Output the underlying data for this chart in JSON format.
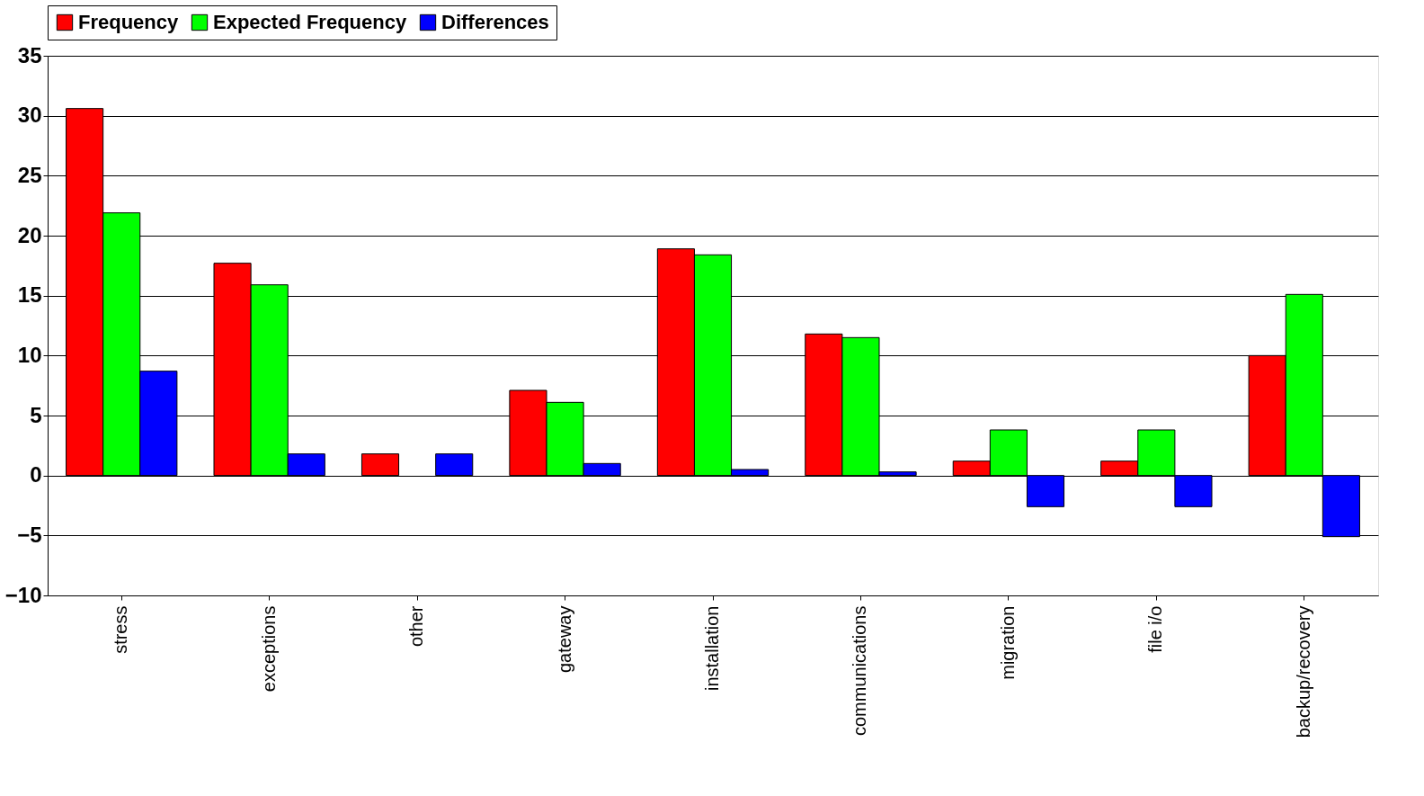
{
  "chart_data": {
    "type": "bar",
    "categories": [
      "stress",
      "exceptions",
      "other",
      "gateway",
      "installation",
      "communications",
      "migration",
      "file i/o",
      "backup/recovery"
    ],
    "series": [
      {
        "name": "Frequency",
        "color": "#ff0000",
        "values": [
          30.6,
          17.7,
          1.8,
          7.1,
          18.9,
          11.8,
          1.2,
          1.2,
          10.0
        ]
      },
      {
        "name": "Expected Frequency",
        "color": "#00ff00",
        "values": [
          21.9,
          15.9,
          null,
          6.1,
          18.4,
          11.5,
          3.8,
          3.8,
          15.1
        ]
      },
      {
        "name": "Differences",
        "color": "#0000ff",
        "values": [
          8.7,
          1.8,
          1.8,
          1.0,
          0.5,
          0.3,
          -2.6,
          -2.6,
          -5.1
        ]
      }
    ],
    "ylim": [
      -10,
      35
    ],
    "yticks": [
      -10,
      -5,
      0,
      5,
      10,
      15,
      20,
      25,
      30,
      35
    ],
    "grid": "y",
    "legend": "top"
  }
}
